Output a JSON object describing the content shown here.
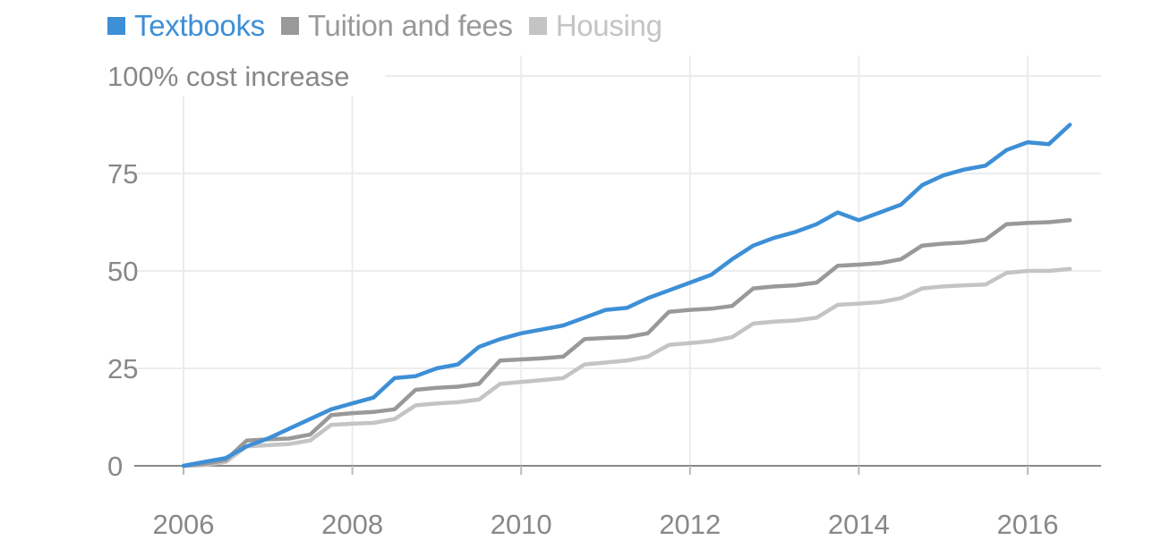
{
  "chart_data": {
    "type": "line",
    "ylabel": "",
    "y_unit_label": "100% cost increase",
    "ylim": [
      0,
      100
    ],
    "xlim": [
      2006,
      2016.75
    ],
    "y_ticks": [
      0,
      25,
      50,
      75
    ],
    "y_tick_labels": [
      "0",
      "25",
      "50",
      "75"
    ],
    "x_ticks": [
      2006,
      2008,
      2010,
      2012,
      2014,
      2016
    ],
    "x_tick_labels": [
      "2006",
      "2008",
      "2010",
      "2012",
      "2014",
      "2016"
    ],
    "grid": true,
    "legend_placement": "top-left",
    "series": [
      {
        "name": "Textbooks",
        "color": "#3d8fd6",
        "x": [
          2006.0,
          2006.25,
          2006.5,
          2006.75,
          2007.0,
          2007.25,
          2007.5,
          2007.75,
          2008.0,
          2008.25,
          2008.5,
          2008.75,
          2009.0,
          2009.25,
          2009.5,
          2009.75,
          2010.0,
          2010.25,
          2010.5,
          2010.75,
          2011.0,
          2011.25,
          2011.5,
          2011.75,
          2012.0,
          2012.25,
          2012.5,
          2012.75,
          2013.0,
          2013.25,
          2013.5,
          2013.75,
          2014.0,
          2014.25,
          2014.5,
          2014.75,
          2015.0,
          2015.25,
          2015.5,
          2015.75,
          2016.0,
          2016.25,
          2016.5
        ],
        "values": [
          0,
          1,
          2,
          5,
          7,
          9.5,
          12,
          14.5,
          16,
          17.5,
          22.5,
          23,
          25,
          26,
          30.5,
          32.5,
          34,
          35,
          36,
          38,
          40,
          40.5,
          43,
          45,
          47,
          49,
          53,
          56.5,
          58.5,
          60,
          62,
          65,
          63,
          65,
          67,
          72,
          74.5,
          76,
          77,
          81,
          83,
          82.5,
          87.5
        ]
      },
      {
        "name": "Tuition and fees",
        "color": "#999999",
        "x": [
          2006.0,
          2006.25,
          2006.5,
          2006.75,
          2007.0,
          2007.25,
          2007.5,
          2007.75,
          2008.0,
          2008.25,
          2008.5,
          2008.75,
          2009.0,
          2009.25,
          2009.5,
          2009.75,
          2010.0,
          2010.25,
          2010.5,
          2010.75,
          2011.0,
          2011.25,
          2011.5,
          2011.75,
          2012.0,
          2012.25,
          2012.5,
          2012.75,
          2013.0,
          2013.25,
          2013.5,
          2013.75,
          2014.0,
          2014.25,
          2014.5,
          2014.75,
          2015.0,
          2015.25,
          2015.5,
          2015.75,
          2016.0,
          2016.25,
          2016.5
        ],
        "values": [
          0,
          0.5,
          1.5,
          6.5,
          6.8,
          7,
          8,
          13,
          13.5,
          13.8,
          14.5,
          19.5,
          20,
          20.3,
          21,
          27,
          27.3,
          27.6,
          28,
          32.5,
          32.8,
          33,
          34,
          39.5,
          40,
          40.3,
          41,
          45.5,
          46,
          46.3,
          47,
          51.3,
          51.6,
          52,
          53,
          56.5,
          57,
          57.3,
          58,
          62,
          62.3,
          62.5,
          63
        ]
      },
      {
        "name": "Housing",
        "color": "#c4c4c4",
        "x": [
          2006.0,
          2006.25,
          2006.5,
          2006.75,
          2007.0,
          2007.25,
          2007.5,
          2007.75,
          2008.0,
          2008.25,
          2008.5,
          2008.75,
          2009.0,
          2009.25,
          2009.5,
          2009.75,
          2010.0,
          2010.25,
          2010.5,
          2010.75,
          2011.0,
          2011.25,
          2011.5,
          2011.75,
          2012.0,
          2012.25,
          2012.5,
          2012.75,
          2013.0,
          2013.25,
          2013.5,
          2013.75,
          2014.0,
          2014.25,
          2014.5,
          2014.75,
          2015.0,
          2015.25,
          2015.5,
          2015.75,
          2016.0,
          2016.25,
          2016.5
        ],
        "values": [
          0,
          0.2,
          1,
          5,
          5.3,
          5.6,
          6.5,
          10.5,
          10.8,
          11,
          12,
          15.5,
          16,
          16.3,
          17,
          21,
          21.5,
          22,
          22.5,
          26,
          26.5,
          27,
          28,
          31,
          31.5,
          32,
          33,
          36.5,
          37,
          37.3,
          38,
          41.3,
          41.6,
          42,
          43,
          45.5,
          46,
          46.3,
          46.5,
          49.5,
          50,
          50,
          50.5
        ]
      }
    ]
  }
}
